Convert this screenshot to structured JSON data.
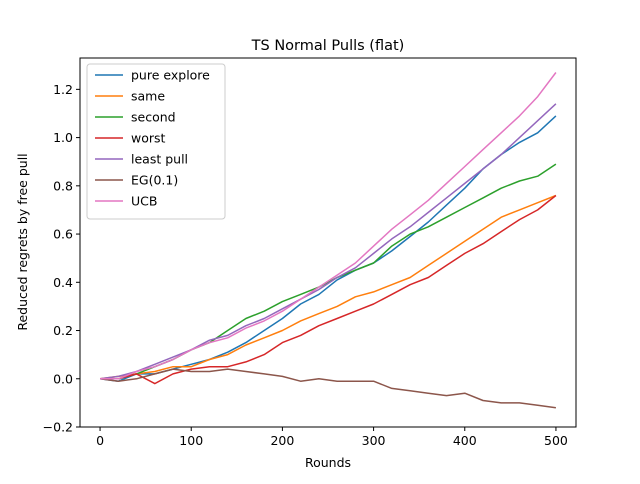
{
  "chart_data": {
    "type": "line",
    "title": "TS Normal Pulls (flat)",
    "xlabel": "Rounds",
    "ylabel": "Reduced regrets by free pull",
    "xlim": [
      -22,
      522
    ],
    "ylim": [
      -0.2,
      1.33
    ],
    "xticks": [
      0,
      100,
      200,
      300,
      400,
      500
    ],
    "xtick_labels": [
      "0",
      "100",
      "200",
      "300",
      "400",
      "500"
    ],
    "yticks": [
      -0.2,
      0.0,
      0.2,
      0.4,
      0.6,
      0.8,
      1.0,
      1.2
    ],
    "ytick_labels": [
      "−0.2",
      "0.0",
      "0.2",
      "0.4",
      "0.6",
      "0.8",
      "1.0",
      "1.2"
    ],
    "grid": false,
    "legend_position": "top-left",
    "series": [
      {
        "name": "pure explore",
        "color": "#1f77b4",
        "points": [
          [
            0,
            0.0
          ],
          [
            20,
            -0.01
          ],
          [
            40,
            0.02
          ],
          [
            60,
            0.02
          ],
          [
            80,
            0.04
          ],
          [
            100,
            0.06
          ],
          [
            120,
            0.08
          ],
          [
            140,
            0.11
          ],
          [
            160,
            0.15
          ],
          [
            180,
            0.2
          ],
          [
            200,
            0.25
          ],
          [
            220,
            0.31
          ],
          [
            240,
            0.35
          ],
          [
            260,
            0.41
          ],
          [
            280,
            0.45
          ],
          [
            300,
            0.48
          ],
          [
            320,
            0.53
          ],
          [
            340,
            0.59
          ],
          [
            360,
            0.65
          ],
          [
            380,
            0.72
          ],
          [
            400,
            0.79
          ],
          [
            420,
            0.87
          ],
          [
            440,
            0.93
          ],
          [
            460,
            0.98
          ],
          [
            480,
            1.02
          ],
          [
            500,
            1.09
          ]
        ]
      },
      {
        "name": "same",
        "color": "#ff7f0e",
        "points": [
          [
            0,
            0.0
          ],
          [
            20,
            0.01
          ],
          [
            40,
            0.02
          ],
          [
            60,
            0.03
          ],
          [
            80,
            0.05
          ],
          [
            100,
            0.05
          ],
          [
            120,
            0.08
          ],
          [
            140,
            0.1
          ],
          [
            160,
            0.14
          ],
          [
            180,
            0.17
          ],
          [
            200,
            0.2
          ],
          [
            220,
            0.24
          ],
          [
            240,
            0.27
          ],
          [
            260,
            0.3
          ],
          [
            280,
            0.34
          ],
          [
            300,
            0.36
          ],
          [
            320,
            0.39
          ],
          [
            340,
            0.42
          ],
          [
            360,
            0.47
          ],
          [
            380,
            0.52
          ],
          [
            400,
            0.57
          ],
          [
            420,
            0.62
          ],
          [
            440,
            0.67
          ],
          [
            460,
            0.7
          ],
          [
            480,
            0.73
          ],
          [
            500,
            0.76
          ]
        ]
      },
      {
        "name": "second",
        "color": "#2ca02c",
        "points": [
          [
            0,
            0.0
          ],
          [
            20,
            0.0
          ],
          [
            40,
            0.02
          ],
          [
            60,
            0.05
          ],
          [
            80,
            0.08
          ],
          [
            100,
            0.12
          ],
          [
            120,
            0.15
          ],
          [
            140,
            0.2
          ],
          [
            160,
            0.25
          ],
          [
            180,
            0.28
          ],
          [
            200,
            0.32
          ],
          [
            220,
            0.35
          ],
          [
            240,
            0.38
          ],
          [
            260,
            0.42
          ],
          [
            280,
            0.45
          ],
          [
            300,
            0.48
          ],
          [
            320,
            0.55
          ],
          [
            340,
            0.6
          ],
          [
            360,
            0.63
          ],
          [
            380,
            0.67
          ],
          [
            400,
            0.71
          ],
          [
            420,
            0.75
          ],
          [
            440,
            0.79
          ],
          [
            460,
            0.82
          ],
          [
            480,
            0.84
          ],
          [
            500,
            0.89
          ]
        ]
      },
      {
        "name": "worst",
        "color": "#d62728",
        "points": [
          [
            0,
            0.0
          ],
          [
            20,
            0.0
          ],
          [
            40,
            0.02
          ],
          [
            60,
            -0.02
          ],
          [
            80,
            0.02
          ],
          [
            100,
            0.04
          ],
          [
            120,
            0.05
          ],
          [
            140,
            0.05
          ],
          [
            160,
            0.07
          ],
          [
            180,
            0.1
          ],
          [
            200,
            0.15
          ],
          [
            220,
            0.18
          ],
          [
            240,
            0.22
          ],
          [
            260,
            0.25
          ],
          [
            280,
            0.28
          ],
          [
            300,
            0.31
          ],
          [
            320,
            0.35
          ],
          [
            340,
            0.39
          ],
          [
            360,
            0.42
          ],
          [
            380,
            0.47
          ],
          [
            400,
            0.52
          ],
          [
            420,
            0.56
          ],
          [
            440,
            0.61
          ],
          [
            460,
            0.66
          ],
          [
            480,
            0.7
          ],
          [
            500,
            0.76
          ]
        ]
      },
      {
        "name": "least pull",
        "color": "#9467bd",
        "points": [
          [
            0,
            0.0
          ],
          [
            20,
            0.01
          ],
          [
            40,
            0.03
          ],
          [
            60,
            0.06
          ],
          [
            80,
            0.09
          ],
          [
            100,
            0.12
          ],
          [
            120,
            0.16
          ],
          [
            140,
            0.18
          ],
          [
            160,
            0.22
          ],
          [
            180,
            0.25
          ],
          [
            200,
            0.29
          ],
          [
            220,
            0.33
          ],
          [
            240,
            0.37
          ],
          [
            260,
            0.42
          ],
          [
            280,
            0.46
          ],
          [
            300,
            0.52
          ],
          [
            320,
            0.58
          ],
          [
            340,
            0.63
          ],
          [
            360,
            0.69
          ],
          [
            380,
            0.75
          ],
          [
            400,
            0.81
          ],
          [
            420,
            0.87
          ],
          [
            440,
            0.93
          ],
          [
            460,
            1.0
          ],
          [
            480,
            1.07
          ],
          [
            500,
            1.14
          ]
        ]
      },
      {
        "name": "EG(0.1)",
        "color": "#8c564b",
        "points": [
          [
            0,
            0.0
          ],
          [
            20,
            -0.01
          ],
          [
            40,
            0.0
          ],
          [
            60,
            0.02
          ],
          [
            80,
            0.04
          ],
          [
            100,
            0.03
          ],
          [
            120,
            0.03
          ],
          [
            140,
            0.04
          ],
          [
            160,
            0.03
          ],
          [
            180,
            0.02
          ],
          [
            200,
            0.01
          ],
          [
            220,
            -0.01
          ],
          [
            240,
            0.0
          ],
          [
            260,
            -0.01
          ],
          [
            280,
            -0.01
          ],
          [
            300,
            -0.01
          ],
          [
            320,
            -0.04
          ],
          [
            340,
            -0.05
          ],
          [
            360,
            -0.06
          ],
          [
            380,
            -0.07
          ],
          [
            400,
            -0.06
          ],
          [
            420,
            -0.09
          ],
          [
            440,
            -0.1
          ],
          [
            460,
            -0.1
          ],
          [
            480,
            -0.11
          ],
          [
            500,
            -0.12
          ]
        ]
      },
      {
        "name": "UCB",
        "color": "#e377c2",
        "points": [
          [
            0,
            0.0
          ],
          [
            20,
            0.0
          ],
          [
            40,
            0.03
          ],
          [
            60,
            0.05
          ],
          [
            80,
            0.08
          ],
          [
            100,
            0.12
          ],
          [
            120,
            0.15
          ],
          [
            140,
            0.17
          ],
          [
            160,
            0.21
          ],
          [
            180,
            0.24
          ],
          [
            200,
            0.28
          ],
          [
            220,
            0.33
          ],
          [
            240,
            0.38
          ],
          [
            260,
            0.43
          ],
          [
            280,
            0.48
          ],
          [
            300,
            0.55
          ],
          [
            320,
            0.62
          ],
          [
            340,
            0.68
          ],
          [
            360,
            0.74
          ],
          [
            380,
            0.81
          ],
          [
            400,
            0.88
          ],
          [
            420,
            0.95
          ],
          [
            440,
            1.02
          ],
          [
            460,
            1.09
          ],
          [
            480,
            1.17
          ],
          [
            500,
            1.27
          ]
        ]
      }
    ]
  }
}
